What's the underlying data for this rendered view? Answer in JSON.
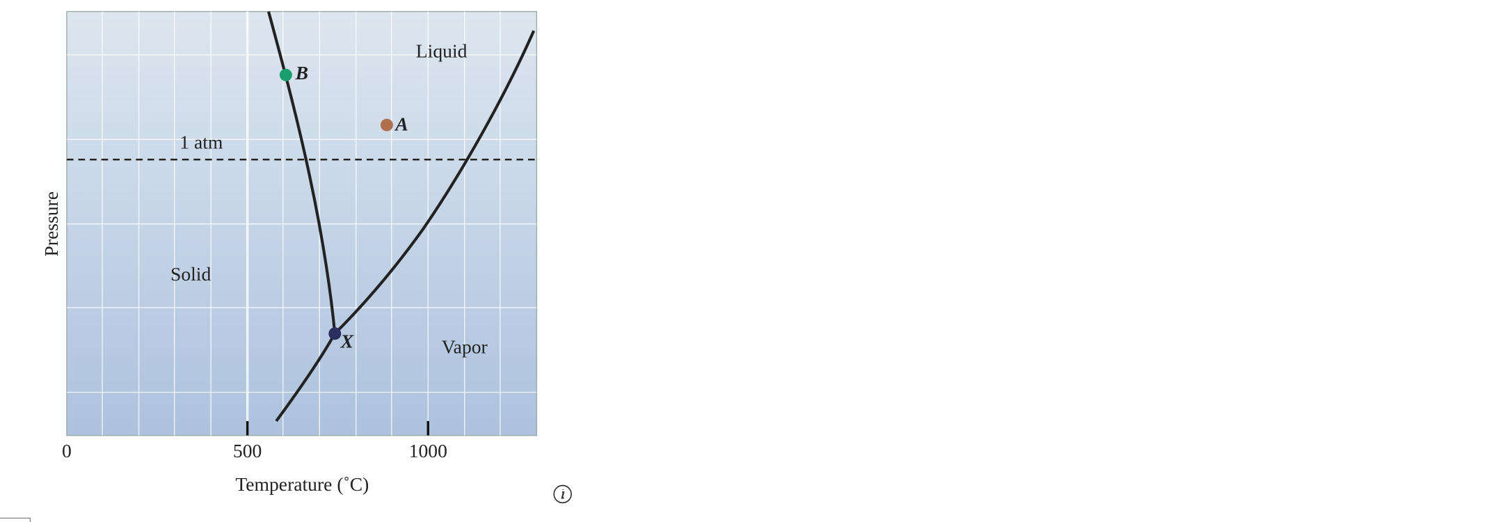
{
  "diagram": {
    "axes": {
      "x_label": "Temperature (˚C)",
      "y_label": "Pressure",
      "x_ticks": [
        "0",
        "500",
        "1000"
      ]
    },
    "reference_line": "1 atm",
    "regions": [
      "Liquid",
      "Solid",
      "Vapor"
    ],
    "points": [
      "B",
      "A",
      "X"
    ]
  }
}
